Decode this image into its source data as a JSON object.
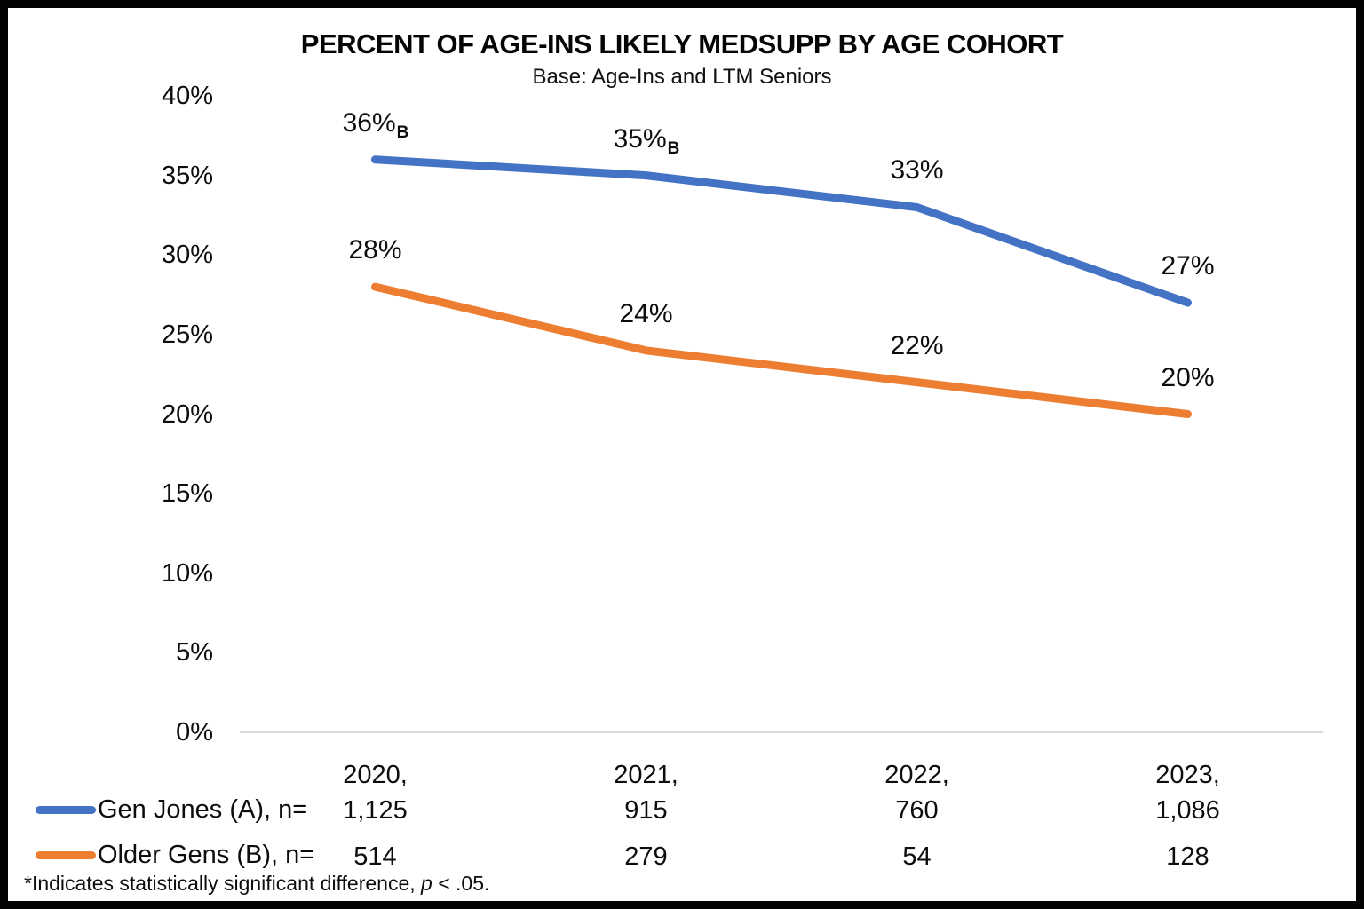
{
  "chart_data": {
    "type": "line",
    "title": "PERCENT OF AGE-INS LIKELY MEDSUPP BY AGE COHORT",
    "subtitle": "Base: Age-Ins and LTM Seniors",
    "categories": [
      "2020",
      "2021",
      "2022",
      "2023"
    ],
    "x_tick_labels": [
      "2020,",
      "2021,",
      "2022,",
      "2023,"
    ],
    "y_axis": {
      "min": 0,
      "max": 40,
      "step": 5,
      "unit": "%",
      "tick_labels_top_down": [
        "40%",
        "35%",
        "30%",
        "25%",
        "20%",
        "15%",
        "10%",
        "5%",
        "0%"
      ],
      "gridlines": "baseline-only"
    },
    "series": [
      {
        "name": "Gen Jones (A)",
        "color": "#4472C4",
        "values": [
          36,
          35,
          33,
          27
        ],
        "point_labels": [
          "36%",
          "35%",
          "33%",
          "27%"
        ],
        "point_label_subscripts": [
          "B",
          "B",
          "",
          ""
        ]
      },
      {
        "name": "Older Gens (B)",
        "color": "#ED7D31",
        "values": [
          28,
          24,
          22,
          20
        ],
        "point_labels": [
          "28%",
          "24%",
          "22%",
          "20%"
        ],
        "point_label_subscripts": [
          "",
          "",
          "",
          ""
        ]
      }
    ],
    "legend": [
      {
        "label": "Gen Jones (A), n=",
        "color": "#4472C4",
        "n_values": [
          "1,125",
          "915",
          "760",
          "1,086"
        ]
      },
      {
        "label": "Older Gens (B), n=",
        "color": "#ED7D31",
        "n_values": [
          "514",
          "279",
          "54",
          "128"
        ]
      }
    ],
    "footnote": {
      "prefix": "*Indicates statistically significant difference, ",
      "italic_term": "p",
      "suffix": " < .05."
    },
    "style_colors": {
      "axis_baseline": "#D9D9D9",
      "text": "#0D0D0D",
      "frame": "#030303"
    }
  }
}
